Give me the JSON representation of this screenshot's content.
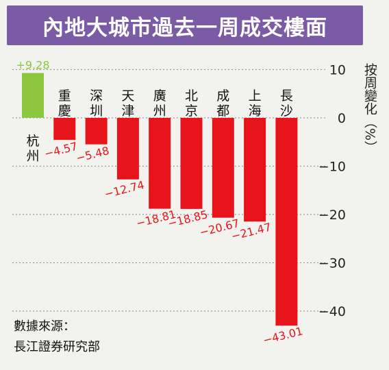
{
  "title": "內地大城市過去一周成交樓面",
  "source": {
    "line1": "數據來源：",
    "line2": "長江證券研究部"
  },
  "colors": {
    "positive": "#8dc63f",
    "negative": "#e8141c",
    "title_bg": "#7b5aa6",
    "grid": "#9a9a9a"
  },
  "chart_data": {
    "type": "bar",
    "categories": [
      "杭州",
      "重慶",
      "深圳",
      "天津",
      "廣州",
      "北京",
      "成都",
      "上海",
      "長沙"
    ],
    "values": [
      9.28,
      -4.57,
      -5.48,
      -12.74,
      -18.81,
      -18.85,
      -20.67,
      -21.47,
      -43.01
    ],
    "value_labels": [
      "+9.28",
      "−4.57",
      "−5.48",
      "−12.74",
      "−18.81",
      "−18.85",
      "−20.67",
      "−21.47",
      "−43.01"
    ],
    "ylabel": "按周變化（%）",
    "ylim": [
      -45,
      12
    ],
    "yticks": [
      10,
      0,
      -10,
      -20,
      -30,
      -40
    ],
    "ytick_labels": [
      "10",
      "0",
      "−10",
      "−20",
      "−30",
      "−40"
    ],
    "grid": true
  }
}
